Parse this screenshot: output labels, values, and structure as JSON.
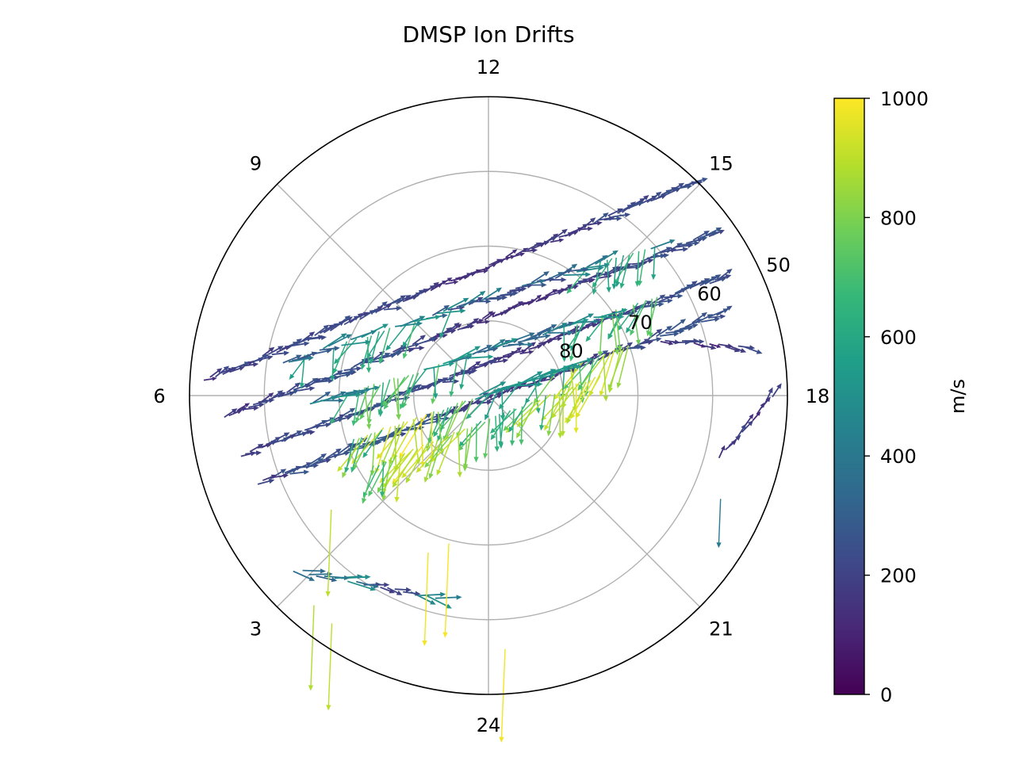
{
  "chart_data": {
    "type": "polar-quiver",
    "title": "DMSP Ion Drifts",
    "mlt_tick_labels": [
      "12",
      "9",
      "6",
      "3",
      "24",
      "21",
      "18",
      "15"
    ],
    "mlt_tick_values": [
      12,
      9,
      6,
      3,
      24,
      21,
      18,
      15
    ],
    "lat_tick_labels": [
      "80",
      "70",
      "60",
      "50"
    ],
    "lat_tick_values": [
      80,
      70,
      60,
      50
    ],
    "lat_range": [
      50,
      90
    ],
    "grid": true,
    "colorbar": {
      "label": "m/s",
      "colormap": "viridis",
      "range": [
        0,
        1000
      ],
      "tick_labels": [
        "0",
        "200",
        "400",
        "600",
        "800",
        "1000"
      ],
      "tick_values": [
        0,
        200,
        400,
        600,
        800,
        1000
      ]
    },
    "colormap_stops": [
      "#440154",
      "#482878",
      "#3e4989",
      "#31688e",
      "#26828e",
      "#1f9e89",
      "#35b779",
      "#6ece58",
      "#b5de2b",
      "#fde725"
    ],
    "passes": [
      {
        "name": "A",
        "start": [
          14.9,
          51.0
        ],
        "end": [
          6.2,
          52.0
        ],
        "vmin": 130,
        "vmax": 260,
        "step": 1.3
      },
      {
        "name": "B",
        "start": [
          15.6,
          53.5
        ],
        "end": [
          5.7,
          54.5
        ],
        "vmin": 130,
        "vmax": 280,
        "step": 1.3
      },
      {
        "name": "C",
        "start": [
          16.2,
          55.5
        ],
        "end": [
          5.1,
          56.0
        ],
        "vmin": 140,
        "vmax": 280,
        "step": 1.3
      },
      {
        "name": "D",
        "start": [
          16.7,
          57.5
        ],
        "end": [
          4.6,
          57.0
        ],
        "vmin": 150,
        "vmax": 300,
        "step": 1.4
      },
      {
        "name": "E",
        "start": [
          15.2,
          60.0
        ],
        "end": [
          6.6,
          62.0
        ],
        "vmin": 200,
        "vmax": 720,
        "step": 1.4
      },
      {
        "name": "F",
        "start": [
          16.0,
          64.0
        ],
        "end": [
          5.8,
          66.0
        ],
        "vmin": 300,
        "vmax": 820,
        "step": 1.3
      },
      {
        "name": "G",
        "start": [
          16.7,
          70.0
        ],
        "end": [
          4.8,
          71.0
        ],
        "vmin": 500,
        "vmax": 1000,
        "step": 1.2
      },
      {
        "name": "H",
        "start": [
          17.3,
          75.0
        ],
        "end": [
          3.9,
          72.0
        ],
        "vmin": 600,
        "vmax": 1000,
        "step": 1.2
      },
      {
        "name": "I",
        "start": [
          17.3,
          55.0
        ],
        "end": [
          16.8,
          66.0
        ],
        "vmin": 100,
        "vmax": 250,
        "step": 1.8
      },
      {
        "name": "J",
        "start": [
          18.0,
          52.0
        ],
        "end": [
          19.0,
          58.0
        ],
        "vmin": 100,
        "vmax": 220,
        "step": 2.0
      },
      {
        "name": "K",
        "start": [
          1.0,
          62.0
        ],
        "end": [
          3.2,
          55.0
        ],
        "vmin": 180,
        "vmax": 520,
        "step": 2.0
      }
    ],
    "isolated_vectors": [
      {
        "mlt": 23.75,
        "lat": 56.0,
        "speed": 980
      },
      {
        "mlt": 2.3,
        "lat": 53.0,
        "speed": 900
      },
      {
        "mlt": 2.65,
        "lat": 53.5,
        "speed": 880
      },
      {
        "mlt": 19.6,
        "lat": 56.0,
        "speed": 420
      },
      {
        "mlt": 1.4,
        "lat": 67.5,
        "speed": 980
      },
      {
        "mlt": 1.0,
        "lat": 69.5,
        "speed": 990
      },
      {
        "mlt": 3.6,
        "lat": 64.0,
        "speed": 900
      }
    ]
  }
}
